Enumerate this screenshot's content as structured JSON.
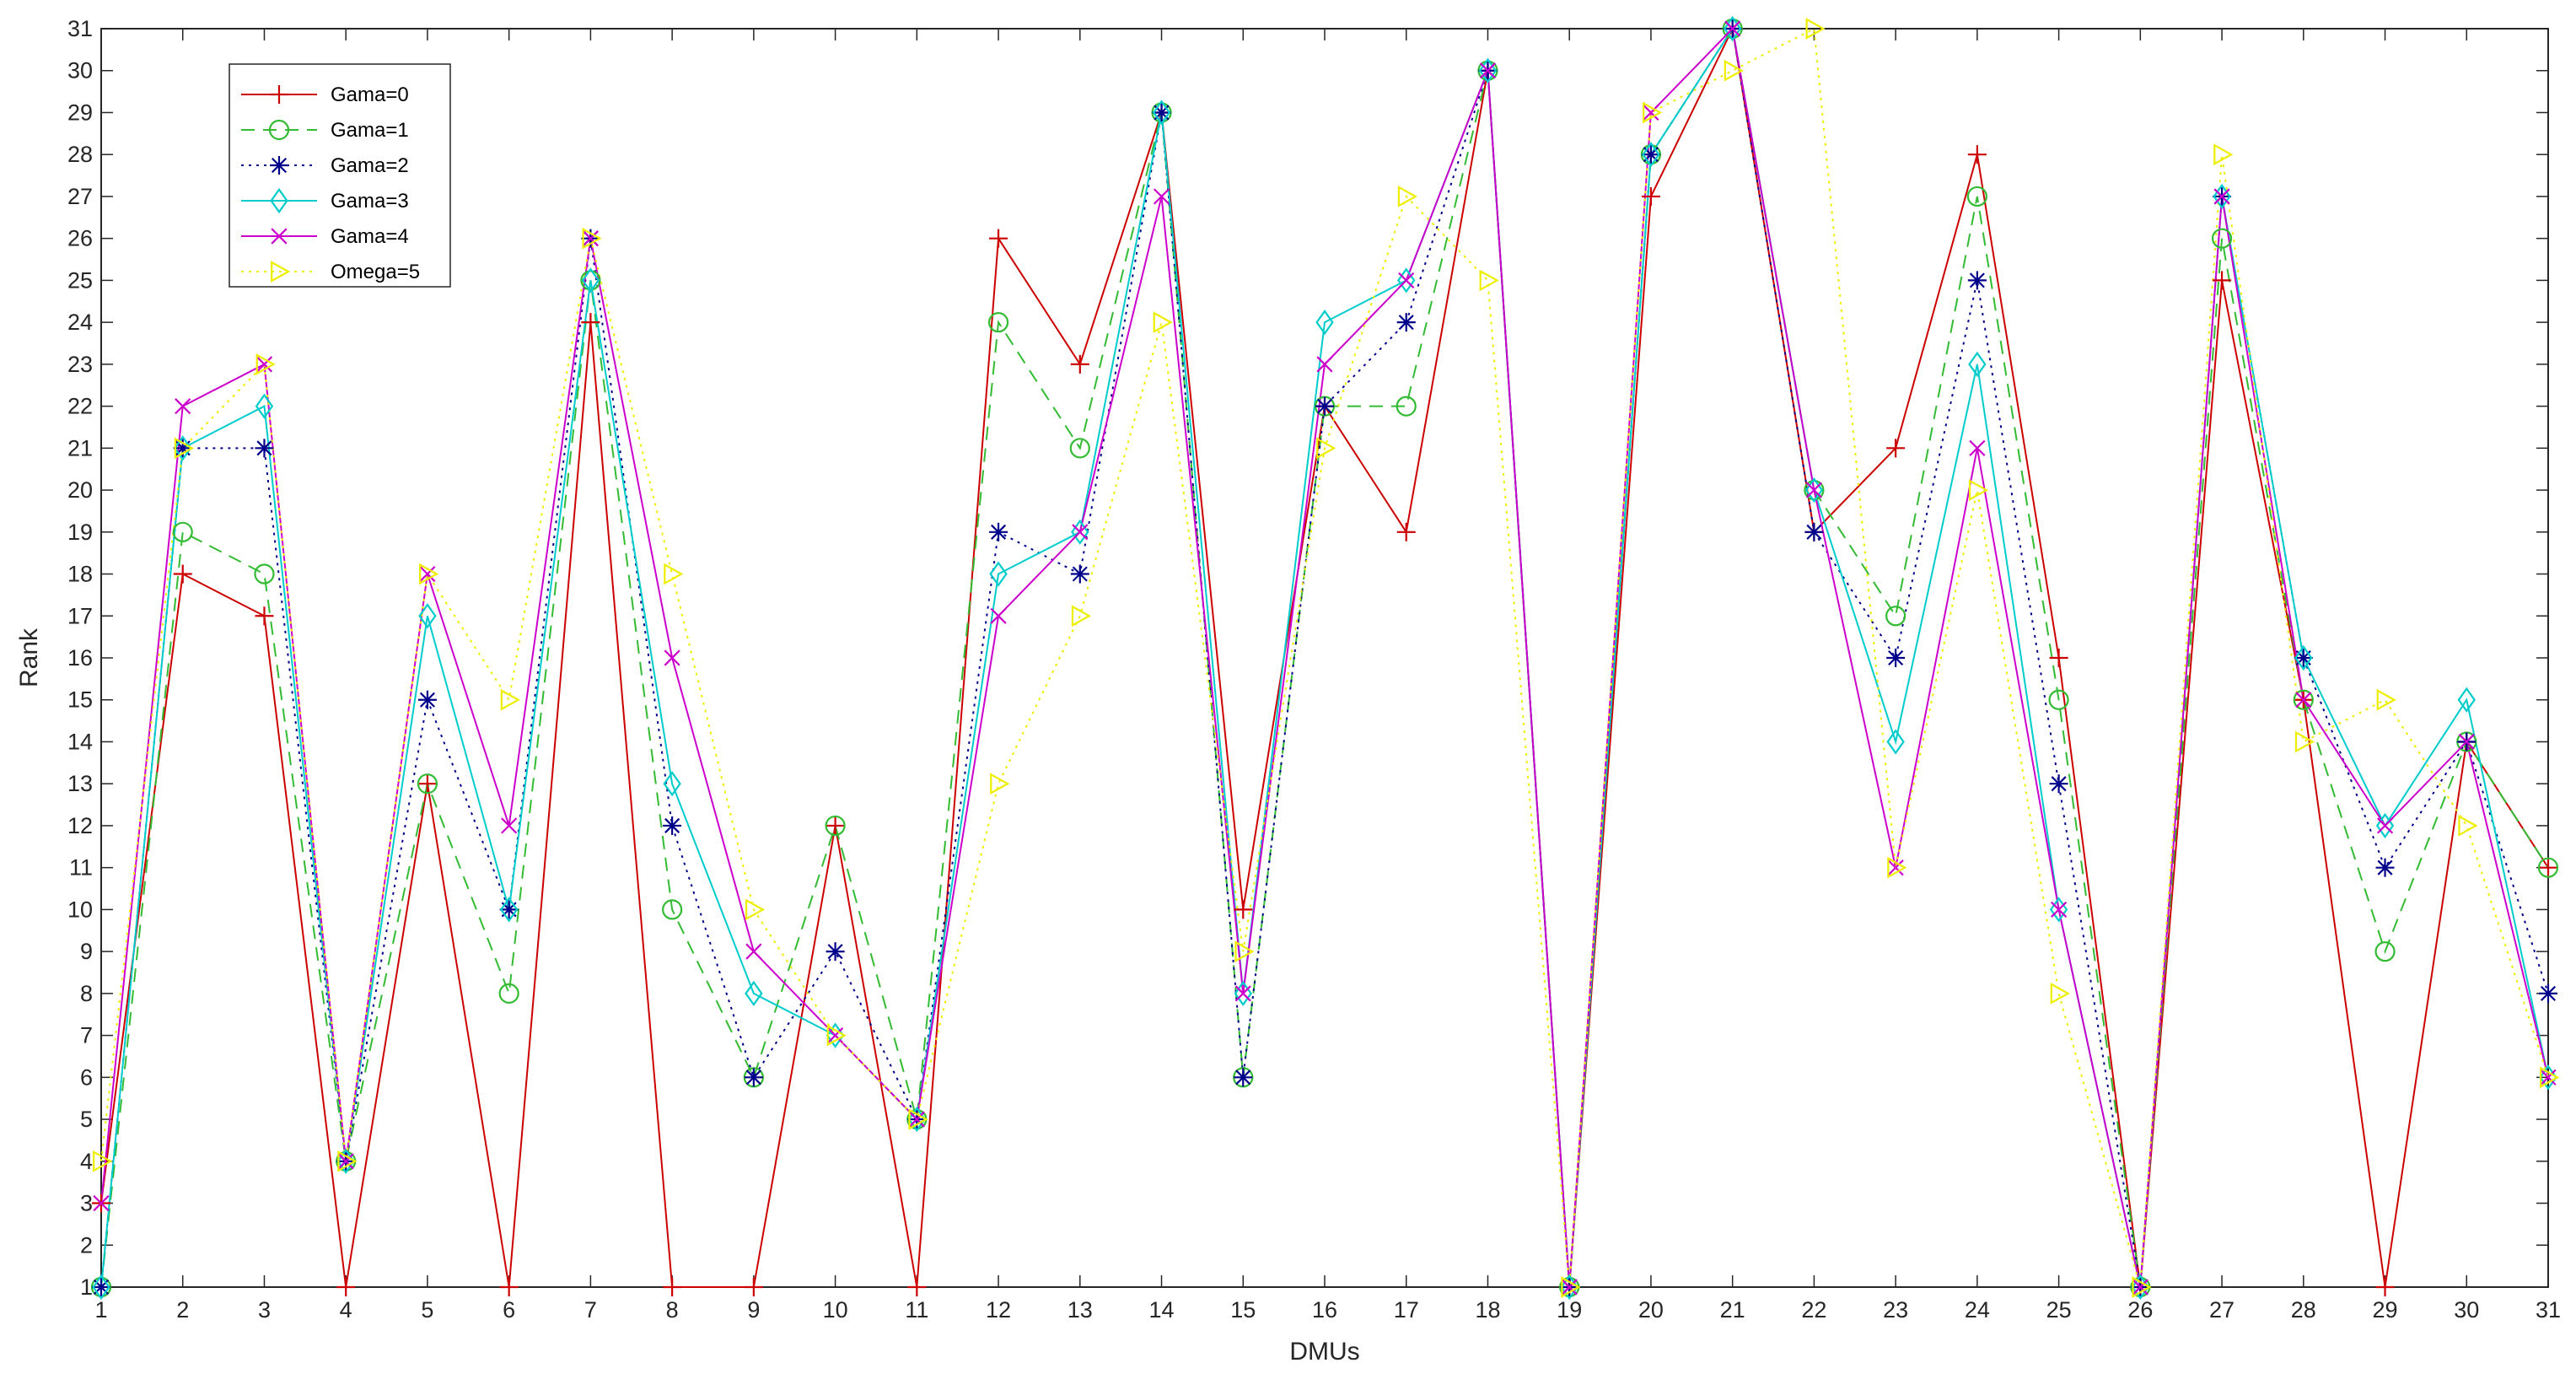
{
  "chart_data": {
    "type": "line",
    "title": "",
    "xlabel": "DMUs",
    "ylabel": "Rank",
    "xlim": [
      1,
      31
    ],
    "ylim": [
      1,
      31
    ],
    "x": [
      1,
      2,
      3,
      4,
      5,
      6,
      7,
      8,
      9,
      10,
      11,
      12,
      13,
      14,
      15,
      16,
      17,
      18,
      19,
      20,
      21,
      22,
      23,
      24,
      25,
      26,
      27,
      28,
      29,
      30,
      31
    ],
    "x_tick_labels": [
      "1",
      "2",
      "3",
      "4",
      "5",
      "6",
      "7",
      "8",
      "9",
      "10",
      "11",
      "12",
      "13",
      "14",
      "15",
      "16",
      "17",
      "18",
      "19",
      "20",
      "21",
      "22",
      "23",
      "24",
      "25",
      "26",
      "27",
      "28",
      "29",
      "30",
      "31"
    ],
    "y_tick_labels": [
      "1",
      "2",
      "3",
      "4",
      "5",
      "6",
      "7",
      "8",
      "9",
      "10",
      "11",
      "12",
      "13",
      "14",
      "15",
      "16",
      "17",
      "18",
      "19",
      "20",
      "21",
      "22",
      "23",
      "24",
      "25",
      "26",
      "27",
      "28",
      "29",
      "30",
      "31"
    ],
    "grid": false,
    "legend_position": "top-left",
    "series": [
      {
        "name": "Gama=0",
        "color": "#cc0000",
        "dash": "solid",
        "marker": "plus",
        "values": [
          3,
          18,
          17,
          1,
          13,
          1,
          24,
          1,
          1,
          12,
          1,
          26,
          23,
          29,
          10,
          22,
          19,
          30,
          1,
          27,
          31,
          19,
          21,
          28,
          16,
          1,
          25,
          15,
          1,
          14,
          11
        ]
      },
      {
        "name": "Gama=1",
        "color": "#33bb33",
        "dash": "dashed",
        "marker": "circle",
        "values": [
          1,
          19,
          18,
          4,
          13,
          8,
          25,
          10,
          6,
          12,
          5,
          24,
          21,
          29,
          6,
          22,
          22,
          30,
          1,
          28,
          31,
          20,
          17,
          27,
          15,
          1,
          26,
          15,
          9,
          14,
          11
        ]
      },
      {
        "name": "Gama=2",
        "color": "#00008b",
        "dash": "dotted",
        "marker": "asterisk",
        "values": [
          1,
          21,
          21,
          4,
          15,
          10,
          26,
          12,
          6,
          9,
          5,
          19,
          18,
          29,
          6,
          22,
          24,
          30,
          1,
          28,
          31,
          19,
          16,
          25,
          13,
          1,
          27,
          16,
          11,
          14,
          8
        ]
      },
      {
        "name": "Gama=3",
        "color": "#00cccc",
        "dash": "solid",
        "marker": "diamond",
        "values": [
          1,
          21,
          22,
          4,
          17,
          10,
          25,
          13,
          8,
          7,
          5,
          18,
          19,
          29,
          8,
          24,
          25,
          30,
          1,
          28,
          31,
          20,
          14,
          23,
          10,
          1,
          27,
          16,
          12,
          15,
          6
        ]
      },
      {
        "name": "Gama=4",
        "color": "#cc00cc",
        "dash": "solid",
        "marker": "x",
        "values": [
          3,
          22,
          23,
          4,
          18,
          12,
          26,
          16,
          9,
          7,
          5,
          17,
          19,
          27,
          8,
          23,
          25,
          30,
          1,
          29,
          31,
          20,
          11,
          21,
          10,
          1,
          27,
          15,
          12,
          14,
          6
        ]
      },
      {
        "name": "Omega=5",
        "color": "#eeee00",
        "dash": "dotted",
        "marker": "triangle-right",
        "values": [
          4,
          21,
          23,
          4,
          18,
          15,
          26,
          18,
          10,
          7,
          5,
          13,
          17,
          24,
          9,
          21,
          27,
          25,
          1,
          29,
          30,
          31,
          11,
          20,
          8,
          1,
          28,
          14,
          15,
          12,
          6
        ]
      }
    ]
  }
}
